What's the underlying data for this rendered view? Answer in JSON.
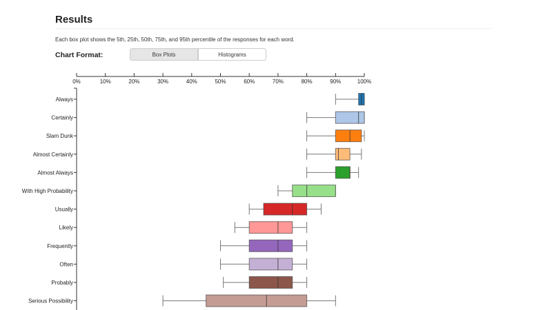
{
  "header": {
    "title": "Results",
    "description": "Each box plot shows the 5th, 25th, 50th, 75th, and 95th percentile of the responses for each word."
  },
  "chart_format": {
    "label": "Chart Format:",
    "options": [
      "Box Plots",
      "Histograms"
    ],
    "selected": "Box Plots"
  },
  "chart_data": {
    "type": "boxplot",
    "orientation": "horizontal",
    "xlim": [
      0,
      100
    ],
    "x_ticks": [
      "0%",
      "10%",
      "20%",
      "30%",
      "40%",
      "50%",
      "60%",
      "70%",
      "80%",
      "90%",
      "100%"
    ],
    "x_axis_position": "top",
    "grid": false,
    "categories": [
      {
        "label": "Always",
        "stats": [
          90,
          98,
          99,
          100,
          100
        ],
        "color": "#1f77b4"
      },
      {
        "label": "Certainly",
        "stats": [
          80,
          90,
          98,
          100,
          100
        ],
        "color": "#aec7e8"
      },
      {
        "label": "Slam Dunk",
        "stats": [
          80,
          90,
          95,
          99,
          100
        ],
        "color": "#ff7f0e"
      },
      {
        "label": "Almost Certainly",
        "stats": [
          80,
          90,
          91,
          95,
          99
        ],
        "color": "#ffbb78"
      },
      {
        "label": "Almost Always",
        "stats": [
          80,
          90,
          95,
          95,
          98
        ],
        "color": "#2ca02c"
      },
      {
        "label": "With High Probability",
        "stats": [
          70,
          75,
          80,
          90,
          90
        ],
        "color": "#98df8a"
      },
      {
        "label": "Usually",
        "stats": [
          60,
          65,
          75,
          80,
          85
        ],
        "color": "#d62728"
      },
      {
        "label": "Likely",
        "stats": [
          55,
          60,
          70,
          75,
          80
        ],
        "color": "#ff9896"
      },
      {
        "label": "Frequently",
        "stats": [
          50,
          60,
          70,
          75,
          80
        ],
        "color": "#9467bd"
      },
      {
        "label": "Often",
        "stats": [
          50,
          60,
          70,
          75,
          80
        ],
        "color": "#c5b0d5"
      },
      {
        "label": "Probably",
        "stats": [
          51,
          60,
          70,
          75,
          80
        ],
        "color": "#8c564b"
      },
      {
        "label": "Serious Possibility",
        "stats": [
          30,
          45,
          66,
          80,
          90
        ],
        "color": "#c49c94"
      }
    ]
  }
}
